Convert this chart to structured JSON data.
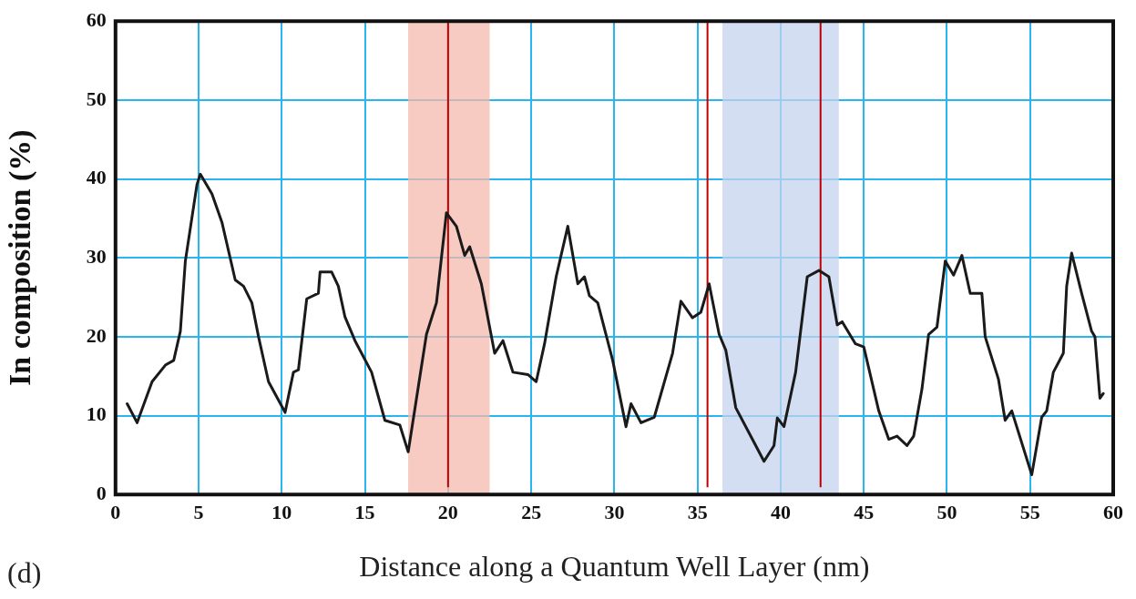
{
  "chart_data": {
    "type": "line",
    "xlabel": "Distance along a Quantum Well Layer (nm)",
    "ylabel": "In composition (%)",
    "annotations": [
      "(d)"
    ],
    "xlim": [
      0,
      60
    ],
    "xticks": [
      0,
      5,
      10,
      15,
      20,
      25,
      30,
      35,
      40,
      45,
      50,
      55,
      60
    ],
    "ylim": [
      0,
      60
    ],
    "yticks": [
      0,
      10,
      20,
      30,
      40,
      50,
      60
    ],
    "grid": true,
    "legend": false,
    "marker": "none",
    "line_style": "solid",
    "bands": [
      {
        "axis": "x",
        "from": 17.6,
        "to": 22.5,
        "color": "#f4b8ae"
      },
      {
        "axis": "x",
        "from": 36.5,
        "to": 43.5,
        "color": "#c5d3ee"
      }
    ],
    "ref_lines": [
      {
        "axis": "x",
        "value": 20,
        "color": "#c00000"
      },
      {
        "axis": "x",
        "value": 35.6,
        "color": "#c00000"
      },
      {
        "axis": "x",
        "value": 42.4,
        "color": "#c00000"
      }
    ],
    "series": [
      {
        "color": "#1a1a1a",
        "x": [
          0.7,
          1.3,
          2.2,
          3.0,
          3.5,
          3.9,
          4.2,
          4.9,
          5.1,
          5.8,
          6.4,
          7.2,
          7.7,
          8.2,
          8.6,
          9.2,
          10.2,
          10.7,
          11.0,
          11.5,
          12.2,
          12.3,
          13.0,
          13.4,
          13.8,
          14.4,
          15.4,
          16.2,
          17.1,
          17.6,
          18.7,
          19.3,
          19.9,
          20.5,
          21.0,
          21.3,
          22.0,
          22.8,
          23.3,
          23.9,
          24.8,
          25.3,
          25.8,
          26.5,
          27.2,
          27.8,
          28.2,
          28.5,
          29.0,
          29.9,
          30.7,
          31.0,
          31.6,
          32.4,
          33.5,
          34.0,
          34.7,
          35.2,
          35.7,
          36.3,
          36.7,
          37.3,
          38.2,
          39.0,
          39.6,
          39.8,
          40.2,
          40.9,
          41.6,
          42.3,
          42.9,
          43.4,
          43.7,
          44.5,
          45.0,
          45.9,
          46.5,
          47.0,
          47.6,
          48.0,
          48.5,
          48.9,
          49.4,
          49.9,
          50.4,
          50.9,
          51.4,
          52.1,
          52.3,
          53.1,
          53.5,
          53.9,
          55.1,
          55.7,
          56.0,
          56.4,
          57.0,
          57.2,
          57.5,
          58.1,
          58.7,
          58.9,
          59.2,
          59.4
        ],
        "values": [
          11.5,
          9.1,
          14.3,
          16.4,
          17.0,
          20.7,
          29.6,
          39.3,
          40.6,
          38.1,
          34.5,
          27.2,
          26.4,
          24.3,
          20.0,
          14.3,
          10.4,
          15.5,
          15.8,
          24.8,
          25.5,
          28.2,
          28.2,
          26.4,
          22.5,
          19.5,
          15.5,
          9.4,
          8.8,
          5.4,
          20.3,
          24.3,
          35.7,
          34.0,
          30.3,
          31.4,
          26.7,
          17.9,
          19.5,
          15.5,
          15.2,
          14.3,
          19.1,
          27.6,
          34.0,
          26.7,
          27.6,
          25.2,
          24.3,
          17.0,
          8.6,
          11.5,
          9.1,
          9.8,
          17.9,
          24.5,
          22.4,
          23.1,
          26.7,
          20.3,
          18.3,
          11.0,
          7.4,
          4.2,
          6.2,
          9.7,
          8.6,
          15.5,
          27.6,
          28.4,
          27.6,
          21.5,
          21.9,
          19.1,
          18.7,
          10.6,
          7.0,
          7.4,
          6.2,
          7.4,
          13.4,
          20.3,
          21.2,
          29.6,
          27.8,
          30.3,
          25.5,
          25.5,
          20.0,
          14.6,
          9.4,
          10.6,
          2.5,
          9.8,
          10.6,
          15.5,
          17.9,
          26.4,
          30.6,
          25.5,
          20.7,
          20.0,
          12.2,
          12.8
        ]
      }
    ]
  }
}
